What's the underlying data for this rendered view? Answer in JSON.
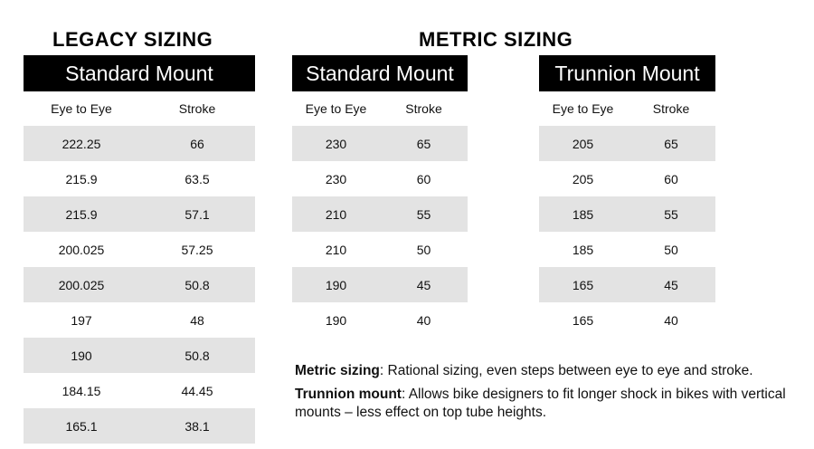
{
  "headings": {
    "legacy": "LEGACY SIZING",
    "metric": "METRIC SIZING"
  },
  "tables": [
    {
      "title": "Standard Mount",
      "columns": [
        "Eye to Eye",
        "Stroke"
      ],
      "rows": [
        [
          "222.25",
          "66"
        ],
        [
          "215.9",
          "63.5"
        ],
        [
          "215.9",
          "57.1"
        ],
        [
          "200.025",
          "57.25"
        ],
        [
          "200.025",
          "50.8"
        ],
        [
          "197",
          "48"
        ],
        [
          "190",
          "50.8"
        ],
        [
          "184.15",
          "44.45"
        ],
        [
          "165.1",
          "38.1"
        ]
      ]
    },
    {
      "title": "Standard Mount",
      "columns": [
        "Eye to Eye",
        "Stroke"
      ],
      "rows": [
        [
          "230",
          "65"
        ],
        [
          "230",
          "60"
        ],
        [
          "210",
          "55"
        ],
        [
          "210",
          "50"
        ],
        [
          "190",
          "45"
        ],
        [
          "190",
          "40"
        ]
      ]
    },
    {
      "title": "Trunnion Mount",
      "columns": [
        "Eye to Eye",
        "Stroke"
      ],
      "rows": [
        [
          "205",
          "65"
        ],
        [
          "205",
          "60"
        ],
        [
          "185",
          "55"
        ],
        [
          "185",
          "50"
        ],
        [
          "165",
          "45"
        ],
        [
          "165",
          "40"
        ]
      ]
    }
  ],
  "notes": [
    {
      "label": "Metric sizing",
      "text": ": Rational sizing, even steps between eye to eye and stroke."
    },
    {
      "label": "Trunnion mount",
      "text": ": Allows bike designers to fit longer shock in bikes with vertical mounts – less effect on top tube heights."
    }
  ]
}
